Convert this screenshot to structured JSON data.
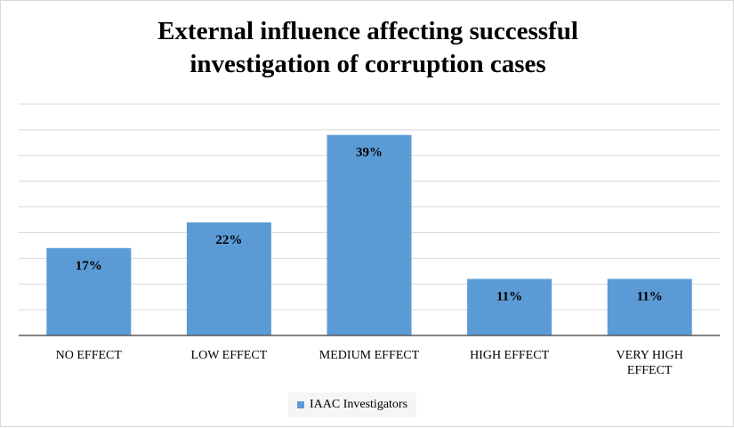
{
  "chart_data": {
    "type": "bar",
    "title": [
      "External influence affecting successful",
      "investigation of corruption cases"
    ],
    "categories": [
      "NO EFFECT",
      "LOW EFFECT",
      "MEDIUM EFFECT",
      "HIGH EFFECT",
      "VERY HIGH EFFECT"
    ],
    "category_lines": [
      [
        "NO EFFECT"
      ],
      [
        "LOW EFFECT"
      ],
      [
        "MEDIUM EFFECT"
      ],
      [
        "HIGH EFFECT"
      ],
      [
        "VERY HIGH",
        "EFFECT"
      ]
    ],
    "series": [
      {
        "name": "IAAC Investigators",
        "values": [
          17,
          22,
          39,
          11,
          11
        ],
        "labels": [
          "17%",
          "22%",
          "39%",
          "11%",
          "11%"
        ]
      }
    ],
    "ylim": [
      0,
      45
    ],
    "gridlines": true,
    "legend_position": "bottom",
    "bar_color": "#5b9bd5"
  }
}
